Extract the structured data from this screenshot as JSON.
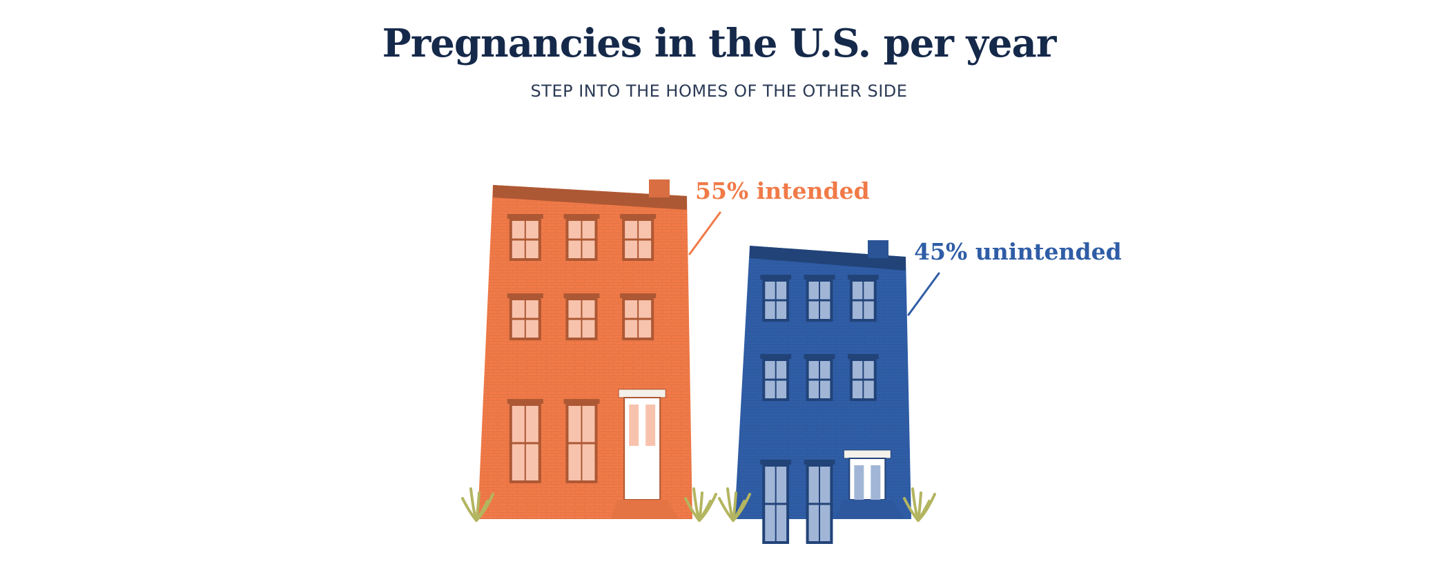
{
  "title": "Pregnancies in the U.S. per year",
  "subtitle": "STEP INTO THE HOMES OF THE OTHER SIDE",
  "colors": {
    "intended": "#f07a48",
    "unintended": "#2f5da6",
    "grass": "#b3b560",
    "title": "#15294a"
  },
  "chart_data": {
    "type": "bar",
    "categories": [
      "intended",
      "unintended"
    ],
    "values": [
      55,
      45
    ],
    "labels": [
      "55% intended",
      "45% unintended"
    ],
    "unit": "%"
  }
}
